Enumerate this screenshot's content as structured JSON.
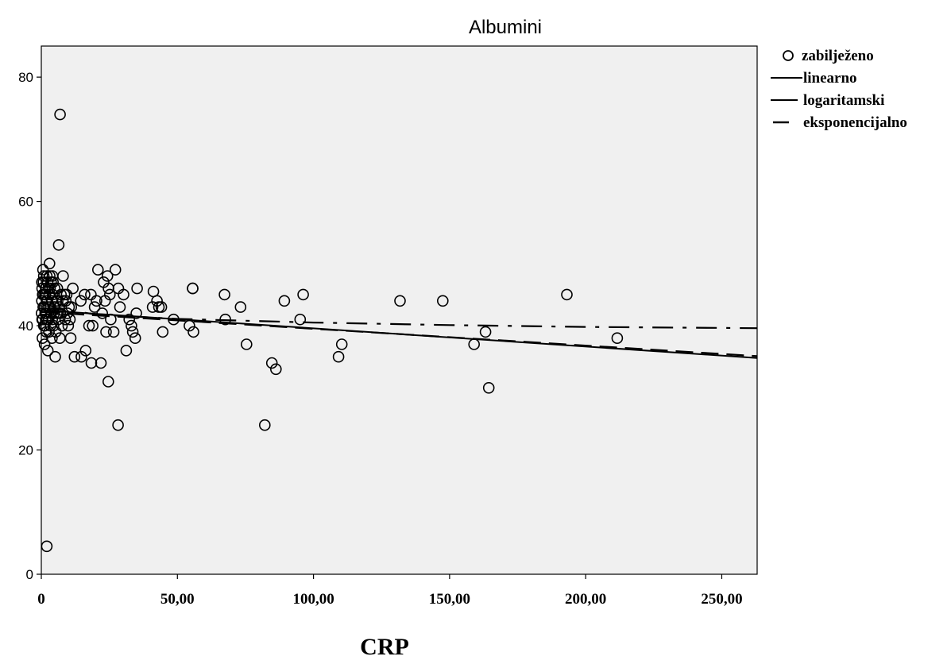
{
  "chart_data": {
    "type": "scatter",
    "title": "Albumini",
    "xlabel": "CRP",
    "ylabel": "",
    "xlim": [
      0,
      263
    ],
    "ylim": [
      0,
      85
    ],
    "x_ticks": [
      0,
      50,
      100,
      150,
      200,
      250
    ],
    "x_tick_labels": [
      "0",
      "50,00",
      "100,00",
      "150,00",
      "200,00",
      "250,00"
    ],
    "y_ticks": [
      0,
      20,
      40,
      60,
      80
    ],
    "y_tick_labels": [
      "0",
      "20",
      "40",
      "60",
      "80"
    ],
    "grid": false,
    "legend_position": "right",
    "legend": [
      {
        "label": "zabilježeno",
        "symbol": "circle"
      },
      {
        "label": "linearno",
        "symbol": "line"
      },
      {
        "label": "logaritamski",
        "symbol": "line"
      },
      {
        "label": "eksponencijalno",
        "symbol": "dash"
      }
    ],
    "series": [
      {
        "name": "zabilježeno",
        "kind": "points",
        "points": [
          [
            6.9,
            74
          ],
          [
            6.4,
            53
          ],
          [
            2,
            4.5
          ],
          [
            28.2,
            24
          ],
          [
            82.1,
            24
          ],
          [
            24.6,
            31
          ],
          [
            164.4,
            30
          ],
          [
            193.1,
            45
          ],
          [
            211.6,
            38
          ],
          [
            147.5,
            44
          ],
          [
            131.8,
            44
          ],
          [
            163.2,
            39
          ],
          [
            159,
            37
          ],
          [
            110.4,
            37
          ],
          [
            109.2,
            35
          ],
          [
            96.2,
            45
          ],
          [
            95.1,
            41
          ],
          [
            89.3,
            44
          ],
          [
            86.2,
            33
          ],
          [
            84.7,
            34
          ],
          [
            75.4,
            37
          ],
          [
            73.2,
            43
          ],
          [
            67.3,
            45
          ],
          [
            67.6,
            41
          ],
          [
            55.6,
            46
          ],
          [
            55.6,
            46
          ],
          [
            55.9,
            39
          ],
          [
            54.4,
            40
          ],
          [
            48.6,
            41
          ],
          [
            44.6,
            39
          ],
          [
            44.1,
            43
          ],
          [
            43.2,
            43
          ],
          [
            42.5,
            44
          ],
          [
            41.2,
            45.5
          ],
          [
            40.9,
            43
          ],
          [
            35.2,
            46
          ],
          [
            34.9,
            42
          ],
          [
            34.5,
            38
          ],
          [
            33.6,
            39
          ],
          [
            33.1,
            40
          ],
          [
            32.3,
            41
          ],
          [
            31.2,
            36
          ],
          [
            30.2,
            45
          ],
          [
            28.3,
            46
          ],
          [
            28.9,
            43
          ],
          [
            27.2,
            49
          ],
          [
            26.6,
            39
          ],
          [
            25.5,
            41
          ],
          [
            25.2,
            45
          ],
          [
            24.7,
            46
          ],
          [
            24.3,
            48
          ],
          [
            23.8,
            39
          ],
          [
            23.4,
            44
          ],
          [
            22.9,
            47
          ],
          [
            22.4,
            42
          ],
          [
            21.9,
            34
          ],
          [
            20.8,
            49
          ],
          [
            20.3,
            44
          ],
          [
            19.6,
            43
          ],
          [
            18.9,
            40
          ],
          [
            18.4,
            34
          ],
          [
            18.2,
            45
          ],
          [
            17.5,
            40
          ],
          [
            16.3,
            36
          ],
          [
            15.9,
            45
          ],
          [
            14.7,
            35
          ],
          [
            14.5,
            44
          ],
          [
            12.2,
            35
          ],
          [
            11.6,
            46
          ],
          [
            10.8,
            38
          ],
          [
            10.2,
            43
          ],
          [
            9.6,
            42
          ],
          [
            9.0,
            44
          ],
          [
            8.5,
            45
          ],
          [
            8.0,
            48
          ],
          [
            7.6,
            40
          ],
          [
            7.2,
            45
          ],
          [
            6.8,
            38
          ],
          [
            6.4,
            42
          ],
          [
            5.9,
            46
          ],
          [
            5.5,
            44
          ],
          [
            5.1,
            35
          ],
          [
            4.8,
            42
          ],
          [
            4.5,
            40
          ],
          [
            4.2,
            45
          ],
          [
            3.9,
            38
          ],
          [
            3.6,
            47
          ],
          [
            3.3,
            43
          ],
          [
            3.0,
            50
          ],
          [
            2.7,
            41
          ],
          [
            2.4,
            36
          ],
          [
            2.2,
            44
          ],
          [
            2.0,
            48
          ],
          [
            1.8,
            39
          ],
          [
            1.6,
            46
          ],
          [
            1.4,
            42
          ],
          [
            1.2,
            37
          ],
          [
            1.0,
            45
          ],
          [
            0.9,
            40
          ],
          [
            0.7,
            43
          ],
          [
            0.6,
            49
          ],
          [
            0.5,
            41
          ],
          [
            0.4,
            38
          ],
          [
            0.3,
            46
          ],
          [
            0.2,
            44
          ],
          [
            0.1,
            42
          ],
          [
            0.8,
            47
          ],
          [
            1.5,
            45
          ],
          [
            2.5,
            43
          ],
          [
            3.2,
            46
          ],
          [
            4.0,
            41
          ],
          [
            5.0,
            43
          ],
          [
            6.0,
            44
          ],
          [
            7.0,
            42
          ],
          [
            8.8,
            41
          ],
          [
            9.9,
            40
          ],
          [
            11.0,
            43
          ],
          [
            1.3,
            40
          ],
          [
            1.9,
            44
          ],
          [
            2.8,
            39
          ],
          [
            3.5,
            42
          ],
          [
            4.3,
            47
          ],
          [
            5.3,
            39
          ],
          [
            6.2,
            41
          ],
          [
            0.5,
            45
          ],
          [
            1.1,
            43
          ],
          [
            2.1,
            41
          ],
          [
            2.9,
            45
          ],
          [
            3.8,
            44
          ],
          [
            4.6,
            43
          ],
          [
            5.7,
            42
          ],
          [
            0.3,
            41
          ],
          [
            1.7,
            42
          ],
          [
            2.6,
            46
          ],
          [
            3.4,
            40
          ],
          [
            4.9,
            46
          ],
          [
            6.6,
            43
          ],
          [
            7.9,
            44
          ],
          [
            9.3,
            45
          ],
          [
            10.5,
            41
          ],
          [
            0.2,
            47
          ],
          [
            0.9,
            48
          ],
          [
            1.6,
            41
          ],
          [
            2.3,
            47
          ],
          [
            3.1,
            48
          ],
          [
            4.1,
            48
          ]
        ]
      },
      {
        "name": "linearno",
        "kind": "line",
        "line_style": "solid",
        "points": [
          [
            0,
            42.5
          ],
          [
            263,
            34.8
          ]
        ]
      },
      {
        "name": "logaritamski",
        "kind": "line",
        "line_style": "dashdot",
        "points": [
          [
            0.5,
            43.8
          ],
          [
            5,
            42.9
          ],
          [
            20,
            41.8
          ],
          [
            50,
            41.1
          ],
          [
            100,
            40.5
          ],
          [
            150,
            40.1
          ],
          [
            200,
            39.8
          ],
          [
            263,
            39.6
          ]
        ]
      },
      {
        "name": "eksponencijalno",
        "kind": "line",
        "line_style": "dash",
        "points": [
          [
            0,
            42.2
          ],
          [
            263,
            35.1
          ]
        ]
      }
    ]
  }
}
